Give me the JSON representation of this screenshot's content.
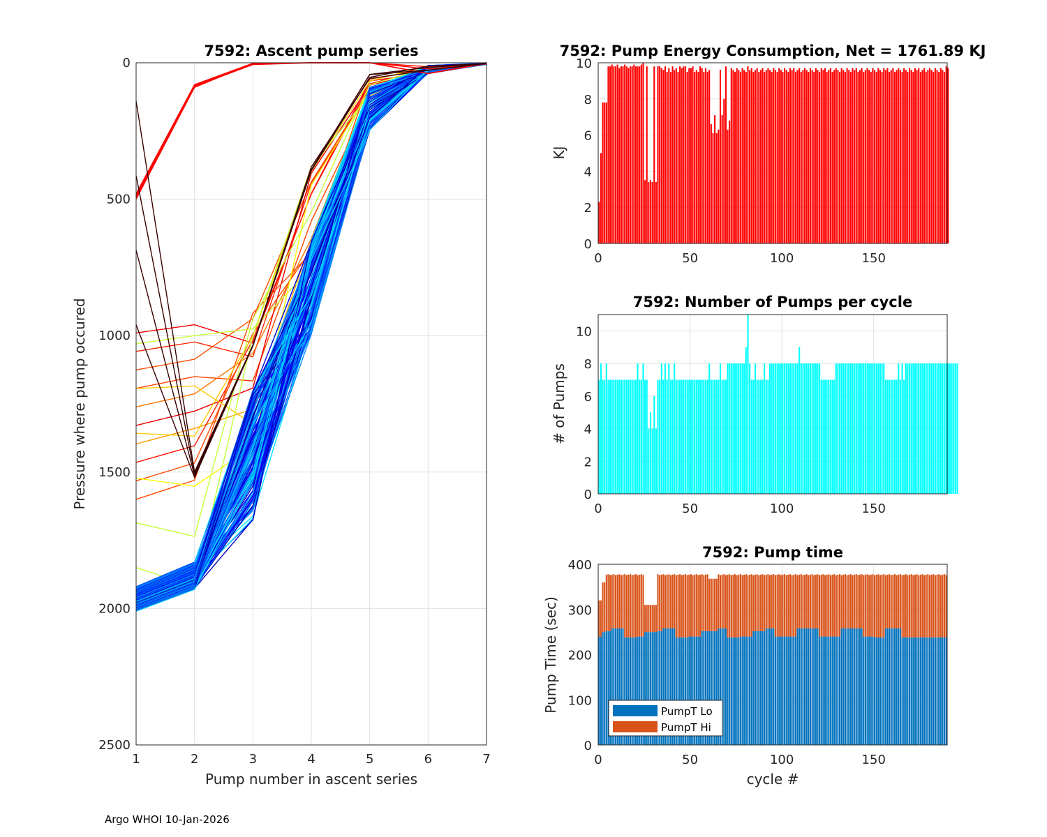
{
  "footer": "Argo WHOI 10-Jan-2026",
  "colors": {
    "energy_bar": "#ff0000",
    "pumps_bar": "#00ffff",
    "pumpt_lo": "#0072bd",
    "pumpt_hi": "#d95319",
    "grid": "#e0e0e0",
    "axis": "#262626"
  },
  "chart_data": [
    {
      "id": "ascent",
      "type": "line",
      "title": "7592: Ascent pump series",
      "xlabel": "Pump number in ascent series",
      "ylabel": "Pressure where pump occured",
      "xlim": [
        1,
        7
      ],
      "ylim": [
        0,
        2500
      ],
      "y_reversed": true,
      "xticks": [
        1,
        2,
        3,
        4,
        5,
        6,
        7
      ],
      "yticks": [
        0,
        500,
        1000,
        1500,
        2000,
        2500
      ],
      "colormap": "jet",
      "series_groups": [
        {
          "name": "dark red early",
          "color": "#3a0000",
          "count": 4,
          "start": [
            140,
            960
          ],
          "end": [
            1500,
            1520
          ],
          "p3": [
            1040,
            1030
          ],
          "p4": [
            380,
            400
          ],
          "p5": [
            40,
            60
          ]
        },
        {
          "name": "red shallow",
          "color": "#ff0000",
          "count": 4,
          "start": [
            480,
            500
          ],
          "end": [
            80,
            90
          ],
          "p3": [
            0,
            10
          ],
          "p4": [
            0,
            0
          ],
          "p5": [
            0,
            0
          ]
        },
        {
          "name": "orange",
          "color": "#ff8c00",
          "count": 10,
          "start": [
            990,
            1600
          ],
          "end": [
            960,
            1530
          ],
          "p3": [
            880,
            1300
          ],
          "p4": [
            360,
            700
          ],
          "p5": [
            60,
            140
          ]
        },
        {
          "name": "yellow-green",
          "color": "#a0ff40",
          "count": 6,
          "start": [
            1030,
            1850
          ],
          "end": [
            1000,
            1920
          ],
          "p3": [
            900,
            1500
          ],
          "p4": [
            380,
            850
          ],
          "p5": [
            60,
            150
          ]
        },
        {
          "name": "blue bulk",
          "color": "#0000c8",
          "count": 120,
          "start": [
            1920,
            2010
          ],
          "end": [
            1830,
            1930
          ],
          "p3": [
            1200,
            1680
          ],
          "p4": [
            650,
            1000
          ],
          "p5": [
            90,
            250
          ]
        }
      ]
    },
    {
      "id": "energy",
      "type": "bar",
      "title": "7592: Pump Energy Consumption,  Net = 1761.89 KJ",
      "xlabel": "",
      "ylabel": "KJ",
      "xlim": [
        0,
        190
      ],
      "ylim": [
        0,
        10
      ],
      "xticks": [
        0,
        50,
        100,
        150
      ],
      "yticks": [
        0,
        2,
        4,
        6,
        8,
        10
      ],
      "values": [
        2.3,
        5.0,
        7.8,
        7.8,
        7.8,
        9.8,
        9.8,
        9.9,
        9.8,
        9.8,
        9.9,
        9.7,
        9.8,
        9.8,
        9.9,
        9.8,
        9.7,
        9.8,
        9.8,
        9.9,
        9.8,
        9.8,
        9.8,
        9.9,
        10.0,
        3.5,
        9.8,
        3.4,
        3.5,
        3.4,
        9.8,
        3.4,
        9.8,
        9.8,
        9.7,
        9.6,
        9.8,
        9.5,
        9.7,
        9.5,
        9.8,
        9.6,
        9.7,
        9.5,
        9.8,
        9.7,
        9.8,
        9.8,
        9.5,
        9.7,
        9.7,
        9.8,
        9.5,
        9.6,
        9.5,
        9.8,
        9.7,
        9.5,
        9.7,
        9.5,
        9.6,
        6.6,
        6.1,
        7.1,
        6.1,
        6.3,
        9.6,
        7.1,
        8.0,
        9.8,
        6.3,
        6.8,
        9.7,
        9.6,
        9.5,
        9.7,
        9.6,
        9.5,
        9.7,
        9.6,
        9.5,
        9.8,
        9.6,
        9.7,
        9.5,
        9.6,
        9.7,
        9.5,
        9.6,
        9.7,
        9.5,
        9.6,
        9.7,
        9.6,
        9.5,
        9.7,
        9.6,
        9.5,
        9.7,
        9.6,
        9.5,
        9.7,
        9.6,
        9.5,
        9.7,
        9.6,
        9.7,
        9.5,
        9.6,
        9.7,
        9.5,
        9.6,
        9.7,
        9.6,
        9.5,
        9.7,
        9.6,
        9.5,
        9.7,
        9.6,
        9.5,
        9.7,
        9.6,
        9.7,
        9.5,
        9.6,
        9.7,
        9.5,
        9.6,
        9.7,
        9.6,
        9.5,
        9.7,
        9.6,
        9.5,
        9.7,
        9.6,
        9.5,
        9.7,
        9.6,
        9.7,
        9.5,
        9.6,
        9.7,
        9.5,
        9.6,
        9.7,
        9.6,
        9.5,
        9.7,
        9.6,
        9.5,
        9.7,
        9.6,
        9.5,
        9.7,
        9.6,
        9.7,
        9.5,
        9.6,
        9.7,
        9.5,
        9.6,
        9.7,
        9.6,
        9.5,
        9.7,
        9.6,
        9.5,
        9.7,
        9.6,
        9.5,
        9.7,
        9.6,
        9.7,
        9.5,
        9.6,
        9.7,
        9.5,
        9.6,
        9.7,
        9.6,
        9.5,
        9.7,
        9.6,
        9.5,
        9.7,
        9.6,
        9.5,
        9.8,
        9.7
      ]
    },
    {
      "id": "pumps",
      "type": "bar",
      "title": "7592: Number of Pumps per cycle",
      "xlabel": "",
      "ylabel": "# of Pumps",
      "xlim": [
        0,
        190
      ],
      "ylim": [
        0,
        11
      ],
      "xticks": [
        0,
        50,
        100,
        150
      ],
      "yticks": [
        0,
        2,
        4,
        6,
        8,
        10
      ],
      "values": [
        7,
        8,
        7,
        7,
        8,
        7,
        7,
        7,
        7,
        7,
        7,
        7,
        7,
        7,
        7,
        7,
        7,
        7,
        7,
        7,
        7,
        8,
        7,
        7,
        8,
        7,
        7,
        4,
        5,
        4,
        6,
        4,
        7,
        7,
        8,
        7,
        8,
        7,
        8,
        7,
        7,
        8,
        7,
        7,
        7,
        7,
        7,
        7,
        7,
        7,
        7,
        7,
        7,
        7,
        7,
        7,
        7,
        7,
        7,
        7,
        8,
        7,
        7,
        7,
        7,
        7,
        8,
        7,
        7,
        7,
        8,
        8,
        8,
        8,
        8,
        8,
        8,
        8,
        8,
        8,
        9,
        11,
        8,
        7,
        7,
        8,
        7,
        7,
        7,
        7,
        8,
        7,
        7,
        8,
        8,
        8,
        8,
        8,
        8,
        8,
        8,
        8,
        8,
        8,
        8,
        8,
        8,
        8,
        8,
        9,
        8,
        8,
        8,
        8,
        8,
        8,
        8,
        8,
        8,
        8,
        8,
        7,
        7,
        7,
        7,
        7,
        7,
        7,
        7,
        8,
        8,
        8,
        8,
        8,
        8,
        8,
        8,
        8,
        8,
        8,
        8,
        8,
        8,
        8,
        8,
        8,
        8,
        8,
        8,
        8,
        8,
        8,
        8,
        8,
        8,
        8,
        7,
        7,
        7,
        7,
        7,
        7,
        7,
        8,
        7,
        8,
        7,
        8,
        8,
        8,
        8,
        8,
        8,
        8,
        8,
        8,
        8,
        8,
        8,
        8,
        8,
        8,
        8,
        8,
        8,
        8,
        8,
        8,
        8,
        8,
        8,
        8,
        8,
        8,
        8,
        8
      ]
    },
    {
      "id": "pumptime",
      "type": "bar",
      "stacked": true,
      "title": "7592: Pump time",
      "xlabel": "cycle #",
      "ylabel": "Pump Time (sec)",
      "xlim": [
        0,
        190
      ],
      "ylim": [
        0,
        400
      ],
      "xticks": [
        0,
        50,
        100,
        150
      ],
      "yticks": [
        0,
        100,
        200,
        300,
        400
      ],
      "legend": [
        "PumpT Lo",
        "PumpT Hi"
      ],
      "legend_location": "bottom-left",
      "series": [
        {
          "name": "PumpT Lo",
          "base": 250,
          "pattern": "steps around 236-260 sec"
        },
        {
          "name": "PumpT Hi",
          "total": 378,
          "pattern": "totals around 310-380 sec"
        }
      ]
    }
  ]
}
